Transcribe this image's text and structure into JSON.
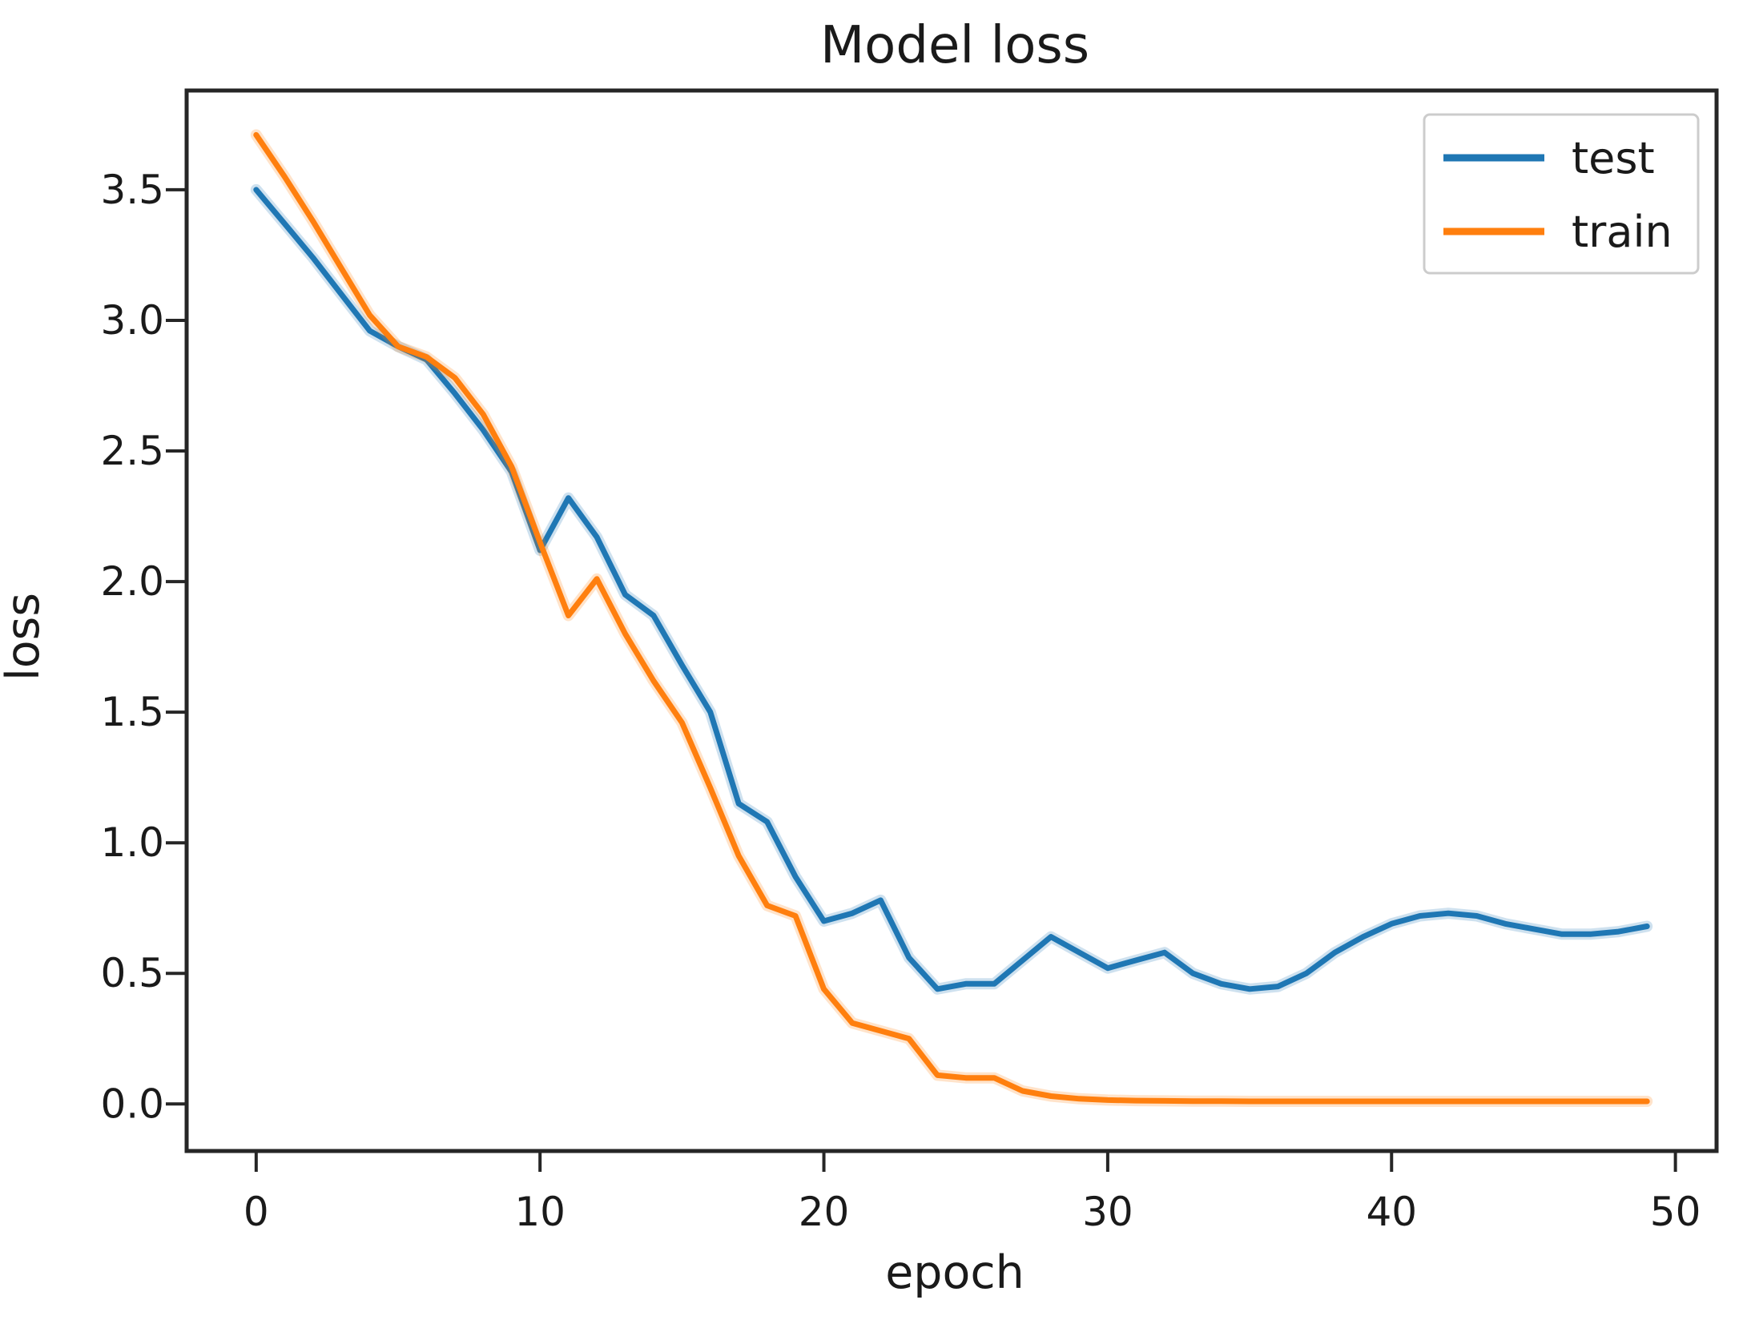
{
  "figure": {
    "background": "#ffffff",
    "spine_color": "#262626",
    "text_color": "#1a1a1a",
    "legend_border_color": "#cccccc"
  },
  "chart_data": {
    "type": "line",
    "title": "Model loss",
    "xlabel": "epoch",
    "ylabel": "loss",
    "grid": false,
    "legend_position": "upper right",
    "xlim": [
      -2.45,
      51.45
    ],
    "ylim": [
      -0.18,
      3.88
    ],
    "x_ticks": {
      "values": [
        0,
        10,
        20,
        30,
        40,
        50
      ],
      "labels": [
        "0",
        "10",
        "20",
        "30",
        "40",
        "50"
      ]
    },
    "y_ticks": {
      "values": [
        0.0,
        0.5,
        1.0,
        1.5,
        2.0,
        2.5,
        3.0,
        3.5
      ],
      "labels": [
        "0.0",
        "0.5",
        "1.0",
        "1.5",
        "2.0",
        "2.5",
        "3.0",
        "3.5"
      ]
    },
    "x": [
      0,
      1,
      2,
      3,
      4,
      5,
      6,
      7,
      8,
      9,
      10,
      11,
      12,
      13,
      14,
      15,
      16,
      17,
      18,
      19,
      20,
      21,
      22,
      23,
      24,
      25,
      26,
      27,
      28,
      29,
      30,
      31,
      32,
      33,
      34,
      35,
      36,
      37,
      38,
      39,
      40,
      41,
      42,
      43,
      44,
      45,
      46,
      47,
      48,
      49
    ],
    "series": [
      {
        "name": "test",
        "color": "#1f77b4",
        "values": [
          3.5,
          3.37,
          3.24,
          3.1,
          2.96,
          2.9,
          2.85,
          2.72,
          2.58,
          2.42,
          2.12,
          2.32,
          2.17,
          1.95,
          1.87,
          1.68,
          1.5,
          1.15,
          1.08,
          0.87,
          0.7,
          0.73,
          0.78,
          0.56,
          0.44,
          0.46,
          0.46,
          0.55,
          0.64,
          0.58,
          0.52,
          0.55,
          0.58,
          0.5,
          0.46,
          0.44,
          0.45,
          0.5,
          0.58,
          0.64,
          0.69,
          0.72,
          0.73,
          0.72,
          0.69,
          0.67,
          0.65,
          0.65,
          0.66,
          0.68
        ]
      },
      {
        "name": "train",
        "color": "#ff7f0e",
        "values": [
          3.71,
          3.55,
          3.38,
          3.2,
          3.02,
          2.9,
          2.86,
          2.78,
          2.64,
          2.44,
          2.15,
          1.87,
          2.01,
          1.8,
          1.62,
          1.46,
          1.21,
          0.95,
          0.76,
          0.72,
          0.44,
          0.31,
          0.28,
          0.25,
          0.11,
          0.1,
          0.1,
          0.05,
          0.03,
          0.02,
          0.015,
          0.013,
          0.012,
          0.011,
          0.011,
          0.01,
          0.01,
          0.01,
          0.01,
          0.01,
          0.01,
          0.01,
          0.01,
          0.01,
          0.01,
          0.01,
          0.01,
          0.01,
          0.01,
          0.01
        ]
      }
    ]
  }
}
